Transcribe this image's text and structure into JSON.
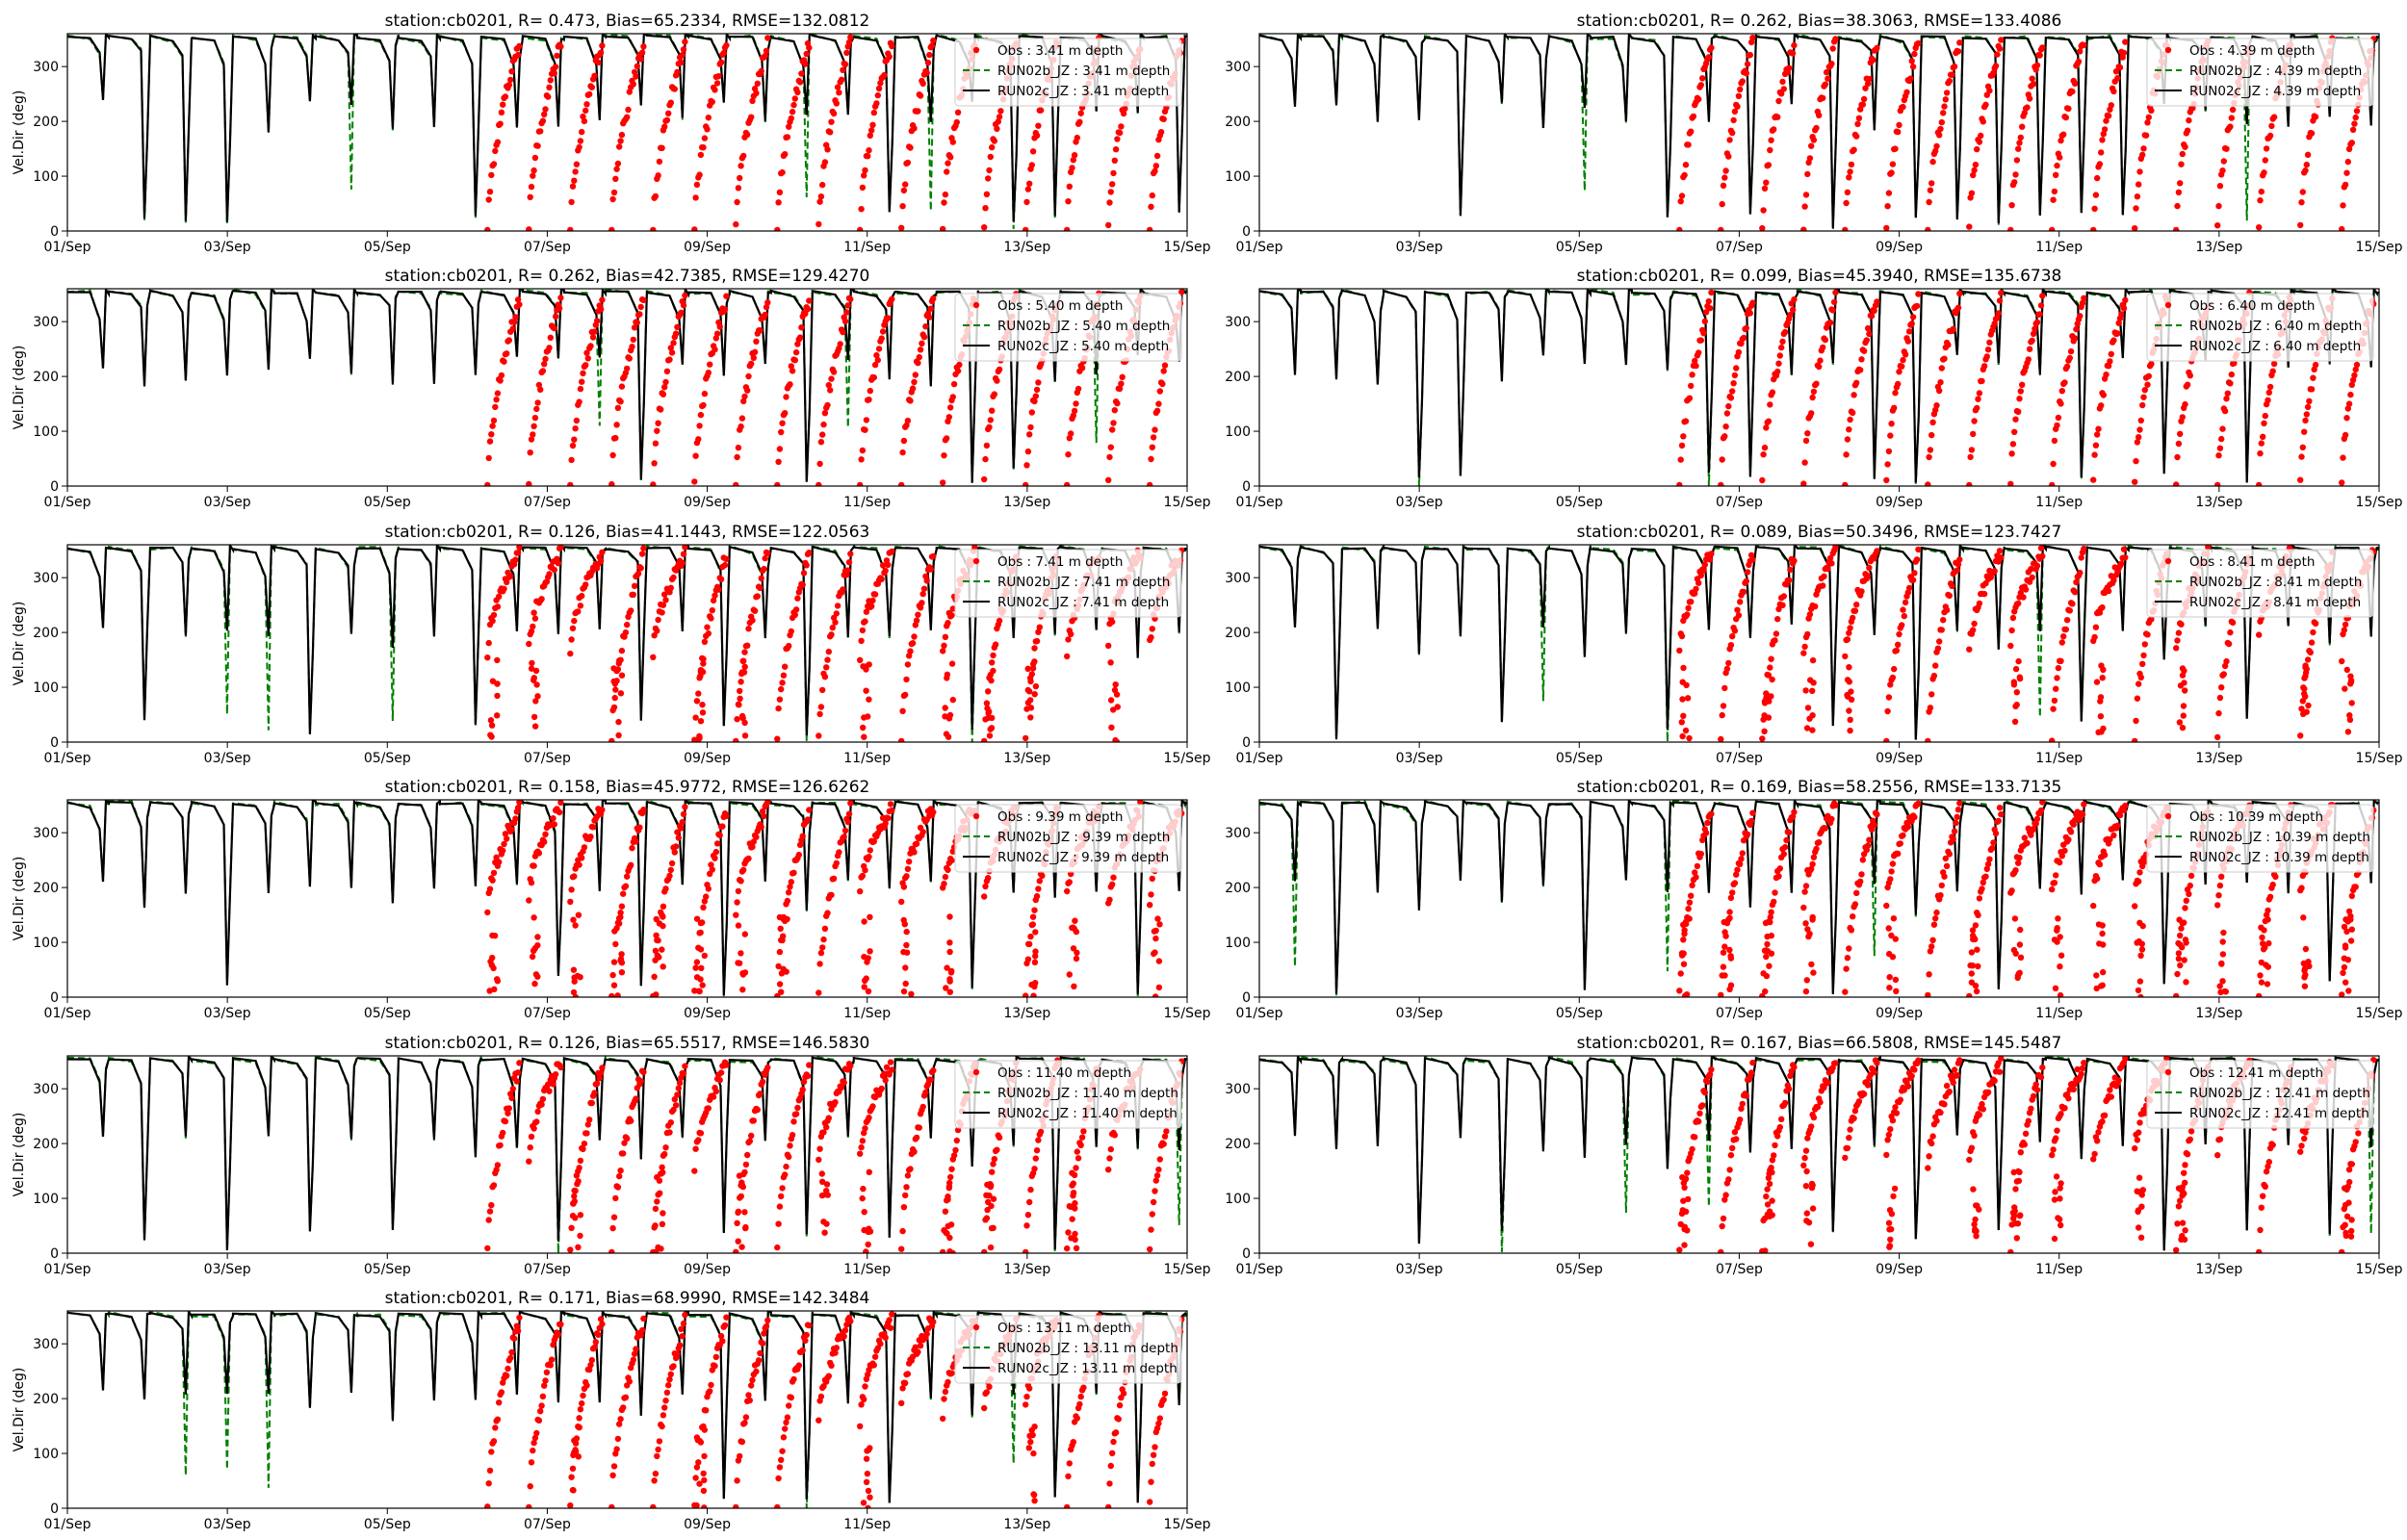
{
  "figure": {
    "x_ticks": [
      "01/Sep",
      "03/Sep",
      "05/Sep",
      "07/Sep",
      "09/Sep",
      "11/Sep",
      "13/Sep",
      "15/Sep"
    ],
    "y_ticks": [
      0,
      100,
      200,
      300
    ],
    "colors": {
      "obs": "#ff0000",
      "run02b": "#008000",
      "run02c": "#000000"
    }
  },
  "chart_data": [
    {
      "type": "line",
      "title": "station:cb0201, R= 0.473, Bias=65.2334, RMSE=132.0812",
      "ylabel": "Vel.Dir (deg)",
      "xlim": [
        "2019-09-01",
        "2019-09-15"
      ],
      "ylim": [
        0,
        360
      ],
      "grid": false,
      "legend": "top-right",
      "depth": "3.41",
      "legend_entries": [
        "Obs : 3.41 m depth",
        "RUN02b_JZ : 3.41 m depth",
        "RUN02c_JZ : 3.41 m depth"
      ],
      "series": [
        {
          "name": "Obs : 3.41 m depth",
          "kind": "scatter",
          "obs_start_day": 5.2
        },
        {
          "name": "RUN02b_JZ : 3.41 m depth",
          "kind": "dashed-line"
        },
        {
          "name": "RUN02c_JZ : 3.41 m depth",
          "kind": "line"
        }
      ]
    },
    {
      "type": "line",
      "title": "station:cb0201, R= 0.262, Bias=38.3063, RMSE=133.4086",
      "ylabel": "",
      "xlim": [
        "2019-09-01",
        "2019-09-15"
      ],
      "ylim": [
        0,
        360
      ],
      "grid": false,
      "legend": "top-right",
      "depth": "4.39",
      "legend_entries": [
        "Obs : 4.39 m depth",
        "RUN02b_JZ : 4.39 m depth",
        "RUN02c_JZ : 4.39 m depth"
      ],
      "series": [
        {
          "name": "Obs : 4.39 m depth",
          "kind": "scatter",
          "obs_start_day": 5.2
        },
        {
          "name": "RUN02b_JZ : 4.39 m depth",
          "kind": "dashed-line"
        },
        {
          "name": "RUN02c_JZ : 4.39 m depth",
          "kind": "line"
        }
      ]
    },
    {
      "type": "line",
      "title": "station:cb0201, R= 0.262, Bias=42.7385, RMSE=129.4270",
      "ylabel": "Vel.Dir (deg)",
      "xlim": [
        "2019-09-01",
        "2019-09-15"
      ],
      "ylim": [
        0,
        360
      ],
      "grid": false,
      "legend": "top-right",
      "depth": "5.40",
      "legend_entries": [
        "Obs : 5.40 m depth",
        "RUN02b_JZ : 5.40 m depth",
        "RUN02c_JZ : 5.40 m depth"
      ],
      "series": [
        {
          "name": "Obs : 5.40 m depth",
          "kind": "scatter",
          "obs_start_day": 5.2
        },
        {
          "name": "RUN02b_JZ : 5.40 m depth",
          "kind": "dashed-line"
        },
        {
          "name": "RUN02c_JZ : 5.40 m depth",
          "kind": "line"
        }
      ]
    },
    {
      "type": "line",
      "title": "station:cb0201, R= 0.099, Bias=45.3940, RMSE=135.6738",
      "ylabel": "",
      "xlim": [
        "2019-09-01",
        "2019-09-15"
      ],
      "ylim": [
        0,
        360
      ],
      "grid": false,
      "legend": "top-right",
      "depth": "6.40",
      "legend_entries": [
        "Obs : 6.40 m depth",
        "RUN02b_JZ : 6.40 m depth",
        "RUN02c_JZ : 6.40 m depth"
      ],
      "series": [
        {
          "name": "Obs : 6.40 m depth",
          "kind": "scatter",
          "obs_start_day": 5.2
        },
        {
          "name": "RUN02b_JZ : 6.40 m depth",
          "kind": "dashed-line"
        },
        {
          "name": "RUN02c_JZ : 6.40 m depth",
          "kind": "line"
        }
      ]
    },
    {
      "type": "line",
      "title": "station:cb0201, R= 0.126, Bias=41.1443, RMSE=122.0563",
      "ylabel": "Vel.Dir (deg)",
      "xlim": [
        "2019-09-01",
        "2019-09-15"
      ],
      "ylim": [
        0,
        360
      ],
      "grid": false,
      "legend": "top-right",
      "depth": "7.41",
      "legend_entries": [
        "Obs : 7.41 m depth",
        "RUN02b_JZ : 7.41 m depth",
        "RUN02c_JZ : 7.41 m depth"
      ],
      "series": [
        {
          "name": "Obs : 7.41 m depth",
          "kind": "scatter",
          "obs_start_day": 5.2
        },
        {
          "name": "RUN02b_JZ : 7.41 m depth",
          "kind": "dashed-line"
        },
        {
          "name": "RUN02c_JZ : 7.41 m depth",
          "kind": "line"
        }
      ]
    },
    {
      "type": "line",
      "title": "station:cb0201, R= 0.089, Bias=50.3496, RMSE=123.7427",
      "ylabel": "",
      "xlim": [
        "2019-09-01",
        "2019-09-15"
      ],
      "ylim": [
        0,
        360
      ],
      "grid": false,
      "legend": "top-right",
      "depth": "8.41",
      "legend_entries": [
        "Obs : 8.41 m depth",
        "RUN02b_JZ : 8.41 m depth",
        "RUN02c_JZ : 8.41 m depth"
      ],
      "series": [
        {
          "name": "Obs : 8.41 m depth",
          "kind": "scatter",
          "obs_start_day": 5.2
        },
        {
          "name": "RUN02b_JZ : 8.41 m depth",
          "kind": "dashed-line"
        },
        {
          "name": "RUN02c_JZ : 8.41 m depth",
          "kind": "line"
        }
      ]
    },
    {
      "type": "line",
      "title": "station:cb0201, R= 0.158, Bias=45.9772, RMSE=126.6262",
      "ylabel": "Vel.Dir (deg)",
      "xlim": [
        "2019-09-01",
        "2019-09-15"
      ],
      "ylim": [
        0,
        360
      ],
      "grid": false,
      "legend": "top-right",
      "depth": "9.39",
      "legend_entries": [
        "Obs : 9.39 m depth",
        "RUN02b_JZ : 9.39 m depth",
        "RUN02c_JZ : 9.39 m depth"
      ],
      "series": [
        {
          "name": "Obs : 9.39 m depth",
          "kind": "scatter",
          "obs_start_day": 5.2
        },
        {
          "name": "RUN02b_JZ : 9.39 m depth",
          "kind": "dashed-line"
        },
        {
          "name": "RUN02c_JZ : 9.39 m depth",
          "kind": "line"
        }
      ]
    },
    {
      "type": "line",
      "title": "station:cb0201, R= 0.169, Bias=58.2556, RMSE=133.7135",
      "ylabel": "",
      "xlim": [
        "2019-09-01",
        "2019-09-15"
      ],
      "ylim": [
        0,
        360
      ],
      "grid": false,
      "legend": "top-right",
      "depth": "10.39",
      "legend_entries": [
        "Obs : 10.39 m depth",
        "RUN02b_JZ : 10.39 m depth",
        "RUN02c_JZ : 10.39 m depth"
      ],
      "series": [
        {
          "name": "Obs : 10.39 m depth",
          "kind": "scatter",
          "obs_start_day": 5.2
        },
        {
          "name": "RUN02b_JZ : 10.39 m depth",
          "kind": "dashed-line"
        },
        {
          "name": "RUN02c_JZ : 10.39 m depth",
          "kind": "line"
        }
      ]
    },
    {
      "type": "line",
      "title": "station:cb0201, R= 0.126, Bias=65.5517, RMSE=146.5830",
      "ylabel": "Vel.Dir (deg)",
      "xlim": [
        "2019-09-01",
        "2019-09-15"
      ],
      "ylim": [
        0,
        360
      ],
      "grid": false,
      "legend": "top-right",
      "depth": "11.40",
      "legend_entries": [
        "Obs : 11.40 m depth",
        "RUN02b_JZ : 11.40 m depth",
        "RUN02c_JZ : 11.40 m depth"
      ],
      "series": [
        {
          "name": "Obs : 11.40 m depth",
          "kind": "scatter",
          "obs_start_day": 5.2
        },
        {
          "name": "RUN02b_JZ : 11.40 m depth",
          "kind": "dashed-line"
        },
        {
          "name": "RUN02c_JZ : 11.40 m depth",
          "kind": "line"
        }
      ]
    },
    {
      "type": "line",
      "title": "station:cb0201, R= 0.167, Bias=66.5808, RMSE=145.5487",
      "ylabel": "",
      "xlim": [
        "2019-09-01",
        "2019-09-15"
      ],
      "ylim": [
        0,
        360
      ],
      "grid": false,
      "legend": "top-right",
      "depth": "12.41",
      "legend_entries": [
        "Obs : 12.41 m depth",
        "RUN02b_JZ : 12.41 m depth",
        "RUN02c_JZ : 12.41 m depth"
      ],
      "series": [
        {
          "name": "Obs : 12.41 m depth",
          "kind": "scatter",
          "obs_start_day": 5.2
        },
        {
          "name": "RUN02b_JZ : 12.41 m depth",
          "kind": "dashed-line"
        },
        {
          "name": "RUN02c_JZ : 12.41 m depth",
          "kind": "line"
        }
      ]
    },
    {
      "type": "line",
      "title": "station:cb0201, R= 0.171, Bias=68.9990, RMSE=142.3484",
      "ylabel": "Vel.Dir (deg)",
      "xlim": [
        "2019-09-01",
        "2019-09-15"
      ],
      "ylim": [
        0,
        360
      ],
      "grid": false,
      "legend": "top-right",
      "depth": "13.11",
      "legend_entries": [
        "Obs : 13.11 m depth",
        "RUN02b_JZ : 13.11 m depth",
        "RUN02c_JZ : 13.11 m depth"
      ],
      "series": [
        {
          "name": "Obs : 13.11 m depth",
          "kind": "scatter",
          "obs_start_day": 5.2
        },
        {
          "name": "RUN02b_JZ : 13.11 m depth",
          "kind": "dashed-line"
        },
        {
          "name": "RUN02c_JZ : 13.11 m depth",
          "kind": "line"
        }
      ]
    }
  ]
}
